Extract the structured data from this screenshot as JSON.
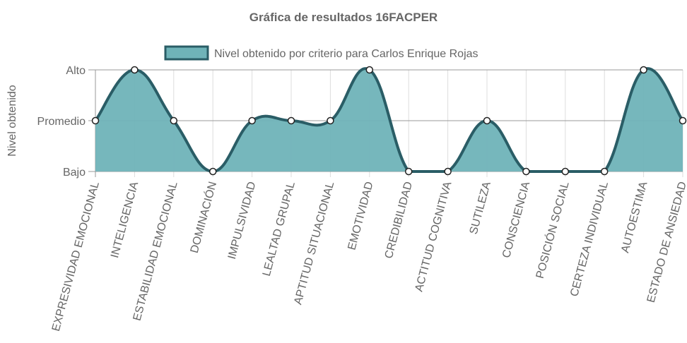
{
  "chart_data": {
    "type": "line",
    "title": "Gráfica de resultados 16FACPER",
    "y_label": "Nivel obtenido",
    "categories": [
      "EXPRESIVIDAD EMOCIONAL",
      "INTELIGENCIA",
      "ESTABILIDAD EMOCIONAL",
      "DOMINACIÓN",
      "IMPULSIVIDAD",
      "LEALTAD GRUPAL",
      "APTITUD SITUACIONAL",
      "EMOTIVIDAD",
      "CREDIBILIDAD",
      "ACTITUD COGNITIVA",
      "SUTILEZA",
      "CONSCIENCIA",
      "POSICIÓN SOCIAL",
      "CERTEZA INDIVIDUAL",
      "AUTOESTIMA",
      "ESTADO DE ANSIEDAD"
    ],
    "series": [
      {
        "name": "Nivel obtenido por criterio para Carlos Enrique Rojas",
        "color": "#2a5d66",
        "fill": "#6fb3b8",
        "values": [
          2,
          3,
          2,
          1,
          2,
          2,
          2,
          3,
          1,
          1,
          2,
          1,
          1,
          1,
          3,
          2
        ]
      }
    ],
    "ylim": [
      1,
      3
    ],
    "yticks": [
      {
        "value": 1,
        "label": "Bajo"
      },
      {
        "value": 2,
        "label": "Promedio"
      },
      {
        "value": 3,
        "label": "Alto"
      }
    ],
    "grid": true
  }
}
